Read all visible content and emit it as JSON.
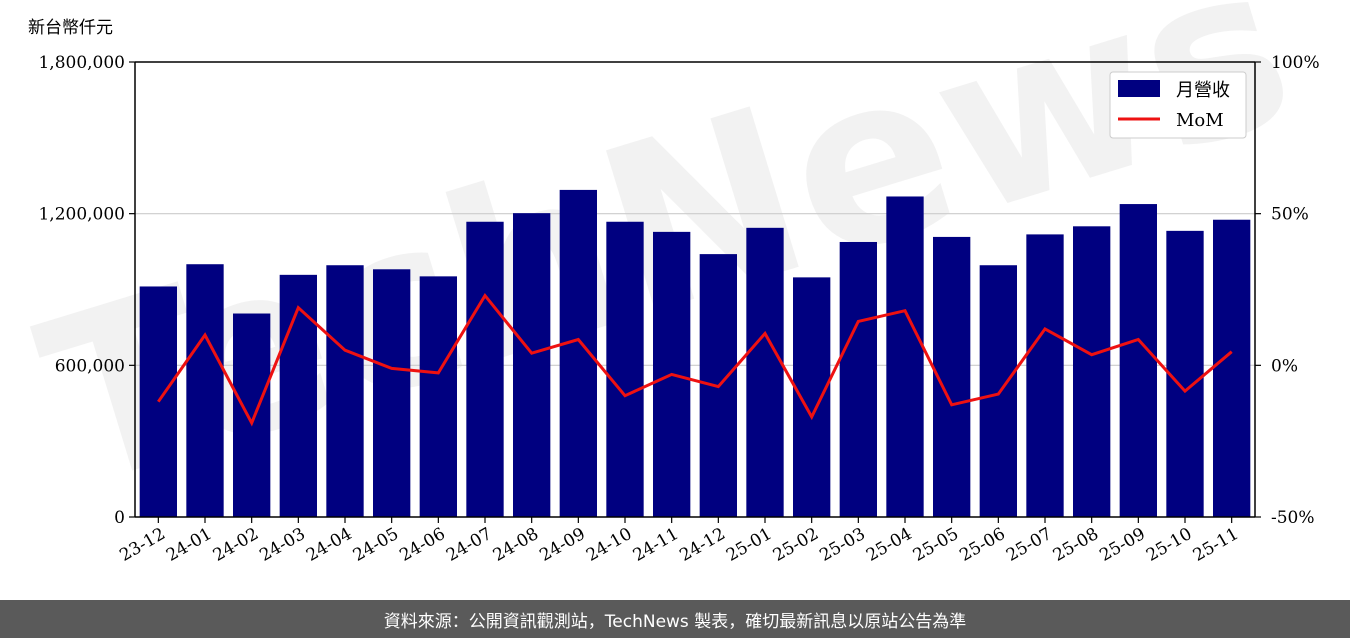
{
  "chart_data": {
    "type": "bar",
    "title": "",
    "y_unit_label": "新台幣仟元",
    "categories": [
      "23-12",
      "24-01",
      "24-02",
      "24-03",
      "24-04",
      "24-05",
      "24-06",
      "24-07",
      "24-08",
      "24-09",
      "24-10",
      "24-11",
      "24-12",
      "25-01",
      "25-02",
      "25-03",
      "25-04",
      "25-05",
      "25-06",
      "25-07",
      "25-08",
      "25-09",
      "25-10",
      "25-11"
    ],
    "series": [
      {
        "name": "月營收",
        "type": "bar",
        "axis": "left",
        "color": "#000080",
        "values": [
          912000,
          1000000,
          805000,
          958000,
          996000,
          980000,
          952000,
          1168000,
          1202000,
          1294000,
          1168000,
          1128000,
          1040000,
          1144000,
          948000,
          1088000,
          1268000,
          1108000,
          996000,
          1118000,
          1150000,
          1238000,
          1132000,
          1176000
        ]
      },
      {
        "name": "MoM",
        "type": "line",
        "axis": "right",
        "color": "#ee1111",
        "values": [
          -12,
          10,
          -19,
          19,
          5,
          -1,
          -2.5,
          23,
          4,
          8.5,
          -10,
          -3,
          -7,
          10.5,
          -17,
          14.5,
          18,
          -13,
          -9.5,
          12,
          3.5,
          8.5,
          -8.5,
          4.5
        ]
      }
    ],
    "y_left": {
      "min": 0,
      "max": 1800000,
      "ticks": [
        "0",
        "600,000",
        "1,200,000",
        "1,800,000"
      ]
    },
    "y_right": {
      "min": -50,
      "max": 100,
      "ticks": [
        "-50%",
        "0%",
        "50%",
        "100%"
      ]
    },
    "grid": "horizontal",
    "legend_placement": "top-right",
    "watermark_text": "TechNews"
  },
  "footer": {
    "text": "資料來源：公開資訊觀測站，TechNews 製表，確切最新訊息以原站公告為準"
  }
}
